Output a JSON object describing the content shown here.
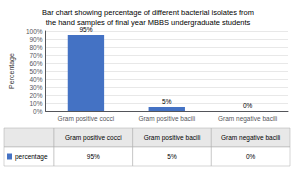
{
  "chart_data": {
    "type": "bar",
    "title": "Bar chart showing percentage of different bacterial isolates from\nthe hand samples of final year MBBS undergraduate students",
    "ylabel": "Percentage",
    "categories": [
      "Gram positive cocci",
      "Gram positive bacili",
      "Gram negative bacili"
    ],
    "series": [
      {
        "name": "percentage",
        "color": "#4472C4",
        "values": [
          95,
          5,
          0
        ],
        "value_labels": [
          "95%",
          "5%",
          "0%"
        ]
      }
    ],
    "ylim": [
      0,
      100
    ],
    "yticks": [
      {
        "value": 0,
        "label": "0%"
      },
      {
        "value": 10,
        "label": "10%"
      },
      {
        "value": 20,
        "label": "20%"
      },
      {
        "value": 30,
        "label": "30%"
      },
      {
        "value": 40,
        "label": "40%"
      },
      {
        "value": 50,
        "label": "50%"
      },
      {
        "value": 60,
        "label": "60%"
      },
      {
        "value": 70,
        "label": "70%"
      },
      {
        "value": 80,
        "label": "80%"
      },
      {
        "value": 90,
        "label": "90%"
      },
      {
        "value": 100,
        "label": "100%"
      }
    ],
    "grid": true,
    "data_labels": true
  }
}
